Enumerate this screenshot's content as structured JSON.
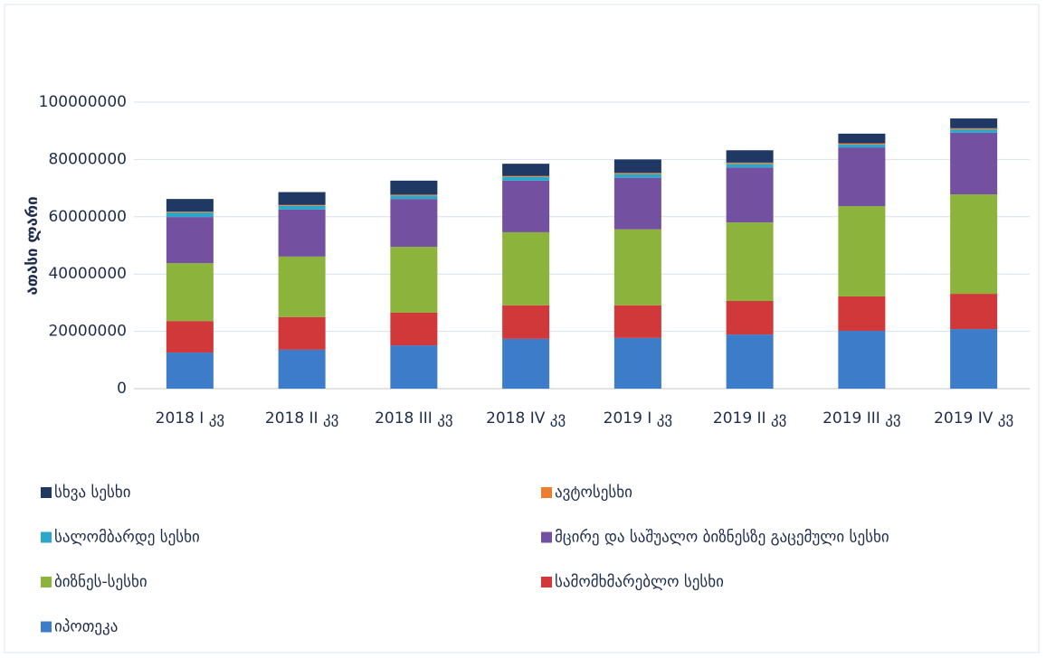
{
  "chart_data": {
    "type": "stacked_bar",
    "y_label": "ათასი ლარი",
    "categories": [
      "2018 I კვ",
      "2018 II კვ",
      "2018 III კვ",
      "2018 IV კვ",
      "2019 I კვ",
      "2019 II კვ",
      "2019 III კვ",
      "2019 IV კვ"
    ],
    "series": [
      {
        "name": "სხვა სესხი",
        "color": "#203864",
        "values": [
          4400000,
          4500000,
          4900000,
          4300000,
          4700000,
          4300000,
          3400000,
          3400000
        ]
      },
      {
        "name": "ავტოსესხი",
        "color": "#ed7d31",
        "values": [
          300000,
          300000,
          300000,
          300000,
          400000,
          400000,
          400000,
          400000
        ]
      },
      {
        "name": "სალომბარდე სესხი",
        "color": "#2aa7c9",
        "values": [
          1600000,
          1300000,
          1200000,
          1300000,
          1300000,
          1300000,
          1000000,
          1200000
        ]
      },
      {
        "name": "მცირე და საშუალო ბიზნესზე გაცემული სესხი",
        "color": "#7451a0",
        "values": [
          16100000,
          16400000,
          16700000,
          18000000,
          18000000,
          19200000,
          20500000,
          21500000
        ]
      },
      {
        "name": "ბიზნეს-სესხი",
        "color": "#8cb43c",
        "values": [
          20200000,
          21100000,
          23000000,
          25500000,
          26500000,
          27400000,
          31500000,
          34700000
        ]
      },
      {
        "name": "სამომხმარებლო სესხი",
        "color": "#d0383a",
        "values": [
          11000000,
          11400000,
          11400000,
          11700000,
          11400000,
          11700000,
          12000000,
          12300000
        ]
      },
      {
        "name": "იპოთეკა",
        "color": "#3d7cc9",
        "values": [
          12600000,
          13600000,
          15100000,
          17400000,
          17700000,
          18900000,
          20200000,
          20800000
        ]
      }
    ],
    "ylim": [
      0,
      100000000
    ],
    "yticks": [
      0,
      20000000,
      40000000,
      60000000,
      80000000,
      100000000
    ],
    "grid": true
  }
}
